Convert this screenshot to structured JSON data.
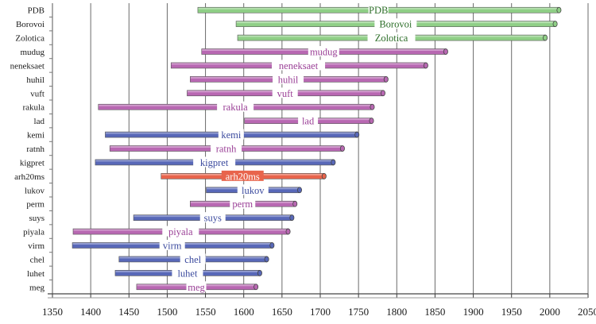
{
  "chart_data": {
    "type": "bar",
    "orientation": "horizontal-range",
    "title": "",
    "xlabel": "",
    "ylabel": "",
    "xlim": [
      1350,
      2050
    ],
    "x_ticks": [
      1350,
      1400,
      1450,
      1500,
      1550,
      1600,
      1650,
      1700,
      1750,
      1800,
      1850,
      1900,
      1950,
      2000,
      2050
    ],
    "grid": "vertical",
    "colors": {
      "green": "#8fcf86",
      "purple": "#b868b2",
      "blue": "#5868b8",
      "red": "#e8644c"
    },
    "label_colors": {
      "green": "#2e6f2a",
      "purple": "#9a3f96",
      "blue": "#3b4a9e",
      "red": "#ffffff"
    },
    "series": [
      {
        "name": "PDB",
        "start": 1540,
        "end": 2012,
        "color": "green"
      },
      {
        "name": "Borovoi",
        "start": 1590,
        "end": 2007,
        "color": "green"
      },
      {
        "name": "Zolotica",
        "start": 1592,
        "end": 1994,
        "color": "green"
      },
      {
        "name": "mudug",
        "start": 1545,
        "end": 1864,
        "color": "purple"
      },
      {
        "name": "neneksaet",
        "start": 1505,
        "end": 1838,
        "color": "purple"
      },
      {
        "name": "huhil",
        "start": 1530,
        "end": 1786,
        "color": "purple"
      },
      {
        "name": "vuft",
        "start": 1526,
        "end": 1782,
        "color": "purple"
      },
      {
        "name": "rakula",
        "start": 1410,
        "end": 1768,
        "color": "purple"
      },
      {
        "name": "lad",
        "start": 1601,
        "end": 1767,
        "color": "purple"
      },
      {
        "name": "kemi",
        "start": 1419,
        "end": 1748,
        "color": "blue"
      },
      {
        "name": "ratnh",
        "start": 1425,
        "end": 1729,
        "color": "purple"
      },
      {
        "name": "kigpret",
        "start": 1406,
        "end": 1717,
        "color": "blue"
      },
      {
        "name": "arh20ms",
        "start": 1492,
        "end": 1705,
        "color": "red"
      },
      {
        "name": "lukov",
        "start": 1551,
        "end": 1673,
        "color": "blue"
      },
      {
        "name": "perm",
        "start": 1530,
        "end": 1667,
        "color": "purple"
      },
      {
        "name": "suys",
        "start": 1456,
        "end": 1663,
        "color": "blue"
      },
      {
        "name": "piyala",
        "start": 1377,
        "end": 1658,
        "color": "purple"
      },
      {
        "name": "virm",
        "start": 1376,
        "end": 1637,
        "color": "blue"
      },
      {
        "name": "chel",
        "start": 1437,
        "end": 1630,
        "color": "blue"
      },
      {
        "name": "luhet",
        "start": 1432,
        "end": 1621,
        "color": "blue"
      },
      {
        "name": "meg",
        "start": 1460,
        "end": 1616,
        "color": "purple"
      }
    ]
  }
}
